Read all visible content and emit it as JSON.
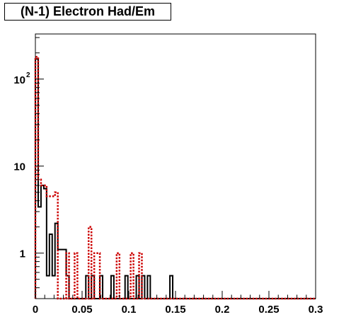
{
  "chart_data": {
    "type": "histogram",
    "title": "(N-1) Electron Had/Em",
    "xlabel": "",
    "ylabel": "",
    "xlim": [
      0,
      0.3
    ],
    "ylim": [
      0.3,
      330
    ],
    "y_scale": "log",
    "grid": false,
    "legend": "none",
    "x_ticks": [
      "0",
      "0.05",
      "0.1",
      "0.15",
      "0.2",
      "0.25",
      "0.3"
    ],
    "y_ticks": [
      {
        "value": 1,
        "mantissa": "1",
        "exponent": ""
      },
      {
        "value": 10,
        "mantissa": "10",
        "exponent": ""
      },
      {
        "value": 100,
        "mantissa": "10",
        "exponent": "2"
      }
    ],
    "bin_width": 0.003,
    "series": [
      {
        "style": "solid",
        "color": "#000000",
        "bins": [
          [
            0.0,
            170
          ],
          [
            0.003,
            3.4
          ],
          [
            0.006,
            6.0
          ],
          [
            0.009,
            5.5
          ],
          [
            0.012,
            0.55
          ],
          [
            0.015,
            1.65
          ],
          [
            0.018,
            0.55
          ],
          [
            0.021,
            2.2
          ],
          [
            0.024,
            1.1
          ],
          [
            0.027,
            1.1
          ],
          [
            0.03,
            1.1
          ],
          [
            0.033,
            0.55
          ],
          [
            0.036,
            0.3
          ],
          [
            0.039,
            0.3
          ],
          [
            0.042,
            0.3
          ],
          [
            0.045,
            0.3
          ],
          [
            0.048,
            0.3
          ],
          [
            0.051,
            0.3
          ],
          [
            0.054,
            0.55
          ],
          [
            0.057,
            0.3
          ],
          [
            0.06,
            0.55
          ],
          [
            0.063,
            0.3
          ],
          [
            0.066,
            0.3
          ],
          [
            0.069,
            0.55
          ],
          [
            0.072,
            0.3
          ],
          [
            0.075,
            0.3
          ],
          [
            0.078,
            0.3
          ],
          [
            0.081,
            0.55
          ],
          [
            0.084,
            0.3
          ],
          [
            0.087,
            0.3
          ],
          [
            0.09,
            0.3
          ],
          [
            0.093,
            0.3
          ],
          [
            0.096,
            0.55
          ],
          [
            0.099,
            0.3
          ],
          [
            0.102,
            0.3
          ],
          [
            0.105,
            0.3
          ],
          [
            0.108,
            0.55
          ],
          [
            0.111,
            0.3
          ],
          [
            0.114,
            0.55
          ],
          [
            0.117,
            0.3
          ],
          [
            0.12,
            0.55
          ],
          [
            0.123,
            0.3
          ],
          [
            0.126,
            0.3
          ],
          [
            0.129,
            0.3
          ],
          [
            0.132,
            0.3
          ],
          [
            0.135,
            0.3
          ],
          [
            0.138,
            0.3
          ],
          [
            0.141,
            0.3
          ],
          [
            0.144,
            0.55
          ],
          [
            0.147,
            0.3
          ]
        ]
      },
      {
        "style": "dotted",
        "color": "#cc0000",
        "bins": [
          [
            0.0,
            180
          ],
          [
            0.003,
            7.0
          ],
          [
            0.006,
            6.0
          ],
          [
            0.009,
            6.0
          ],
          [
            0.012,
            4.5
          ],
          [
            0.015,
            4.5
          ],
          [
            0.018,
            4.5
          ],
          [
            0.021,
            5.0
          ],
          [
            0.024,
            0.3
          ],
          [
            0.027,
            0.3
          ],
          [
            0.03,
            0.3
          ],
          [
            0.033,
            1.0
          ],
          [
            0.036,
            0.3
          ],
          [
            0.039,
            0.3
          ],
          [
            0.042,
            1.0
          ],
          [
            0.045,
            0.3
          ],
          [
            0.048,
            0.3
          ],
          [
            0.051,
            0.3
          ],
          [
            0.054,
            0.3
          ],
          [
            0.057,
            2.0
          ],
          [
            0.06,
            0.3
          ],
          [
            0.063,
            1.0
          ],
          [
            0.066,
            1.0
          ],
          [
            0.069,
            0.3
          ],
          [
            0.072,
            0.3
          ],
          [
            0.075,
            0.3
          ],
          [
            0.078,
            0.3
          ],
          [
            0.081,
            0.3
          ],
          [
            0.084,
            0.3
          ],
          [
            0.087,
            1.0
          ],
          [
            0.09,
            0.3
          ],
          [
            0.093,
            0.3
          ],
          [
            0.096,
            0.3
          ],
          [
            0.099,
            0.3
          ],
          [
            0.102,
            1.0
          ],
          [
            0.105,
            0.3
          ],
          [
            0.108,
            0.3
          ],
          [
            0.111,
            1.0
          ],
          [
            0.114,
            0.3
          ],
          [
            0.117,
            0.3
          ]
        ]
      }
    ]
  }
}
